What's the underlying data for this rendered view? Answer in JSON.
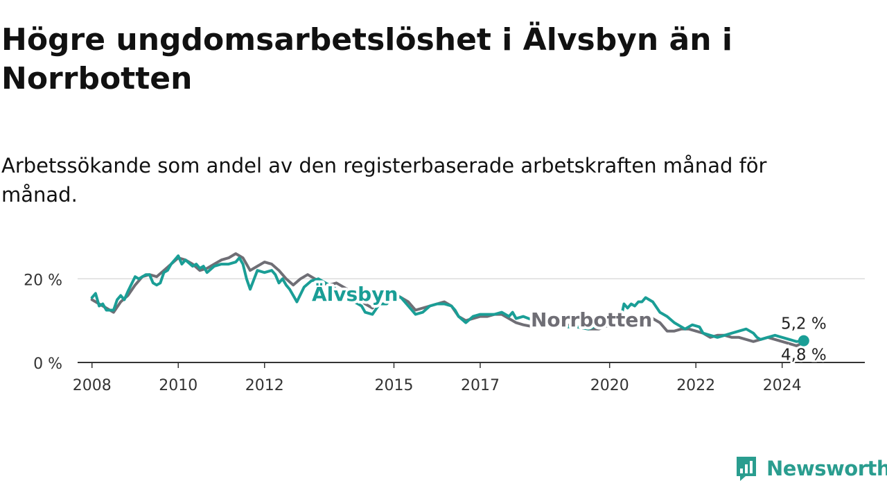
{
  "title": "Högre ungdomsarbetslöshet i Älvsbyn än i Norrbotten",
  "subtitle": "Arbetssökande som andel av den registerbaserade arbetskraften månad för månad.",
  "brand": {
    "name": "Newsworthy",
    "icon": "newsworthy-logo-icon",
    "color": "#2a9d8f"
  },
  "chart_data": {
    "type": "line",
    "title": "Högre ungdomsarbetslöshet i Älvsbyn än i Norrbotten",
    "subtitle": "Arbetssökande som andel av den registerbaserade arbetskraften månad för månad.",
    "xlabel": "",
    "ylabel": "",
    "x_ticks": [
      "2008",
      "2010",
      "2012",
      "2015",
      "2017",
      "2020",
      "2022",
      "2024"
    ],
    "y_ticks": [
      0,
      20
    ],
    "y_tick_labels": [
      "0 %",
      "20 %"
    ],
    "ylim": [
      0,
      27
    ],
    "xlim": [
      "2007-09",
      "2025-12"
    ],
    "grid": "horizontal",
    "legend": "inline labels",
    "series": [
      {
        "name": "Norrbotten",
        "color": "#6f6e75",
        "label": "Norrbotten",
        "end_label": "4,8 %",
        "points": [
          [
            "2008-01",
            15.0
          ],
          [
            "2008-03",
            14.0
          ],
          [
            "2008-05",
            13.0
          ],
          [
            "2008-07",
            12.0
          ],
          [
            "2008-09",
            14.5
          ],
          [
            "2008-11",
            16.0
          ],
          [
            "2009-01",
            18.5
          ],
          [
            "2009-03",
            20.5
          ],
          [
            "2009-05",
            21.0
          ],
          [
            "2009-07",
            20.5
          ],
          [
            "2009-09",
            22.0
          ],
          [
            "2009-11",
            23.5
          ],
          [
            "2010-01",
            25.0
          ],
          [
            "2010-03",
            24.5
          ],
          [
            "2010-05",
            23.5
          ],
          [
            "2010-07",
            22.0
          ],
          [
            "2010-09",
            22.5
          ],
          [
            "2010-11",
            23.5
          ],
          [
            "2011-01",
            24.5
          ],
          [
            "2011-03",
            25.0
          ],
          [
            "2011-05",
            26.0
          ],
          [
            "2011-07",
            25.0
          ],
          [
            "2011-09",
            22.0
          ],
          [
            "2011-11",
            23.0
          ],
          [
            "2012-01",
            24.0
          ],
          [
            "2012-03",
            23.5
          ],
          [
            "2012-05",
            22.0
          ],
          [
            "2012-07",
            20.0
          ],
          [
            "2012-09",
            18.5
          ],
          [
            "2012-11",
            20.0
          ],
          [
            "2013-01",
            21.0
          ],
          [
            "2013-03",
            20.0
          ],
          [
            "2013-05",
            19.0
          ],
          [
            "2013-07",
            18.5
          ],
          [
            "2013-09",
            19.0
          ],
          [
            "2013-11",
            18.0
          ],
          [
            "2014-01",
            17.0
          ],
          [
            "2014-03",
            15.5
          ],
          [
            "2014-05",
            14.0
          ],
          [
            "2014-07",
            13.0
          ],
          [
            "2014-09",
            15.0
          ],
          [
            "2014-11",
            16.0
          ],
          [
            "2015-01",
            16.5
          ],
          [
            "2015-03",
            15.5
          ],
          [
            "2015-05",
            14.5
          ],
          [
            "2015-07",
            12.5
          ],
          [
            "2015-09",
            13.0
          ],
          [
            "2015-11",
            13.5
          ],
          [
            "2016-01",
            14.0
          ],
          [
            "2016-03",
            14.5
          ],
          [
            "2016-05",
            13.5
          ],
          [
            "2016-07",
            11.0
          ],
          [
            "2016-09",
            10.0
          ],
          [
            "2016-11",
            10.5
          ],
          [
            "2017-01",
            11.0
          ],
          [
            "2017-03",
            11.0
          ],
          [
            "2017-05",
            11.5
          ],
          [
            "2017-07",
            11.5
          ],
          [
            "2017-09",
            10.5
          ],
          [
            "2017-11",
            9.5
          ],
          [
            "2018-01",
            9.0
          ],
          [
            "2018-04",
            8.5
          ],
          [
            "2018-07",
            9.0
          ],
          [
            "2018-10",
            8.5
          ],
          [
            "2019-01",
            9.0
          ],
          [
            "2019-04",
            8.5
          ],
          [
            "2019-07",
            8.0
          ],
          [
            "2019-10",
            8.0
          ],
          [
            "2020-01",
            9.0
          ],
          [
            "2020-03",
            10.0
          ],
          [
            "2020-05",
            10.5
          ],
          [
            "2020-07",
            10.5
          ],
          [
            "2020-09",
            10.0
          ],
          [
            "2020-11",
            11.0
          ],
          [
            "2021-01",
            10.5
          ],
          [
            "2021-03",
            9.5
          ],
          [
            "2021-05",
            7.5
          ],
          [
            "2021-07",
            7.5
          ],
          [
            "2021-09",
            8.0
          ],
          [
            "2021-11",
            8.0
          ],
          [
            "2022-01",
            7.5
          ],
          [
            "2022-03",
            7.0
          ],
          [
            "2022-05",
            6.0
          ],
          [
            "2022-07",
            6.5
          ],
          [
            "2022-09",
            6.5
          ],
          [
            "2022-11",
            6.0
          ],
          [
            "2023-01",
            6.0
          ],
          [
            "2023-03",
            5.5
          ],
          [
            "2023-05",
            5.0
          ],
          [
            "2023-07",
            5.5
          ],
          [
            "2023-09",
            6.0
          ],
          [
            "2023-11",
            5.5
          ],
          [
            "2024-01",
            5.0
          ],
          [
            "2024-03",
            4.5
          ],
          [
            "2024-05",
            4.0
          ],
          [
            "2024-07",
            4.8
          ]
        ]
      },
      {
        "name": "Älvsbyn",
        "color": "#1a9e96",
        "label": "Älvsbyn",
        "end_label": "5,2 %",
        "points": [
          [
            "2008-01",
            15.5
          ],
          [
            "2008-02",
            16.5
          ],
          [
            "2008-03",
            13.5
          ],
          [
            "2008-04",
            14.0
          ],
          [
            "2008-05",
            12.5
          ],
          [
            "2008-07",
            12.5
          ],
          [
            "2008-08",
            15.0
          ],
          [
            "2008-09",
            16.0
          ],
          [
            "2008-10",
            15.0
          ],
          [
            "2008-11",
            17.0
          ],
          [
            "2009-01",
            20.5
          ],
          [
            "2009-02",
            20.0
          ],
          [
            "2009-04",
            21.0
          ],
          [
            "2009-05",
            21.0
          ],
          [
            "2009-06",
            19.0
          ],
          [
            "2009-07",
            18.5
          ],
          [
            "2009-08",
            19.0
          ],
          [
            "2009-09",
            21.5
          ],
          [
            "2009-10",
            22.0
          ],
          [
            "2009-11",
            23.5
          ],
          [
            "2010-01",
            25.5
          ],
          [
            "2010-02",
            23.5
          ],
          [
            "2010-03",
            24.5
          ],
          [
            "2010-05",
            23.0
          ],
          [
            "2010-06",
            23.5
          ],
          [
            "2010-07",
            22.5
          ],
          [
            "2010-08",
            23.0
          ],
          [
            "2010-09",
            21.5
          ],
          [
            "2010-11",
            23.0
          ],
          [
            "2011-01",
            23.5
          ],
          [
            "2011-03",
            23.5
          ],
          [
            "2011-05",
            24.0
          ],
          [
            "2011-06",
            25.0
          ],
          [
            "2011-07",
            23.5
          ],
          [
            "2011-08",
            20.0
          ],
          [
            "2011-09",
            17.5
          ],
          [
            "2011-11",
            22.0
          ],
          [
            "2012-01",
            21.5
          ],
          [
            "2012-03",
            22.0
          ],
          [
            "2012-04",
            21.0
          ],
          [
            "2012-05",
            19.0
          ],
          [
            "2012-06",
            20.0
          ],
          [
            "2012-07",
            18.5
          ],
          [
            "2012-08",
            17.5
          ],
          [
            "2012-09",
            16.0
          ],
          [
            "2012-10",
            14.5
          ],
          [
            "2012-12",
            18.0
          ],
          [
            "2013-02",
            19.5
          ],
          [
            "2013-04",
            20.0
          ],
          [
            "2013-06",
            19.0
          ],
          [
            "2013-08",
            18.0
          ],
          [
            "2013-10",
            17.0
          ],
          [
            "2013-12",
            15.5
          ],
          [
            "2014-02",
            14.5
          ],
          [
            "2014-04",
            13.5
          ],
          [
            "2014-05",
            12.0
          ],
          [
            "2014-07",
            11.5
          ],
          [
            "2014-09",
            14.0
          ],
          [
            "2014-11",
            14.0
          ],
          [
            "2014-12",
            15.0
          ],
          [
            "2015-01",
            16.0
          ],
          [
            "2015-03",
            15.5
          ],
          [
            "2015-05",
            13.5
          ],
          [
            "2015-07",
            11.5
          ],
          [
            "2015-09",
            12.0
          ],
          [
            "2015-11",
            13.5
          ],
          [
            "2016-01",
            14.0
          ],
          [
            "2016-03",
            14.0
          ],
          [
            "2016-05",
            13.5
          ],
          [
            "2016-06",
            12.5
          ],
          [
            "2016-07",
            11.0
          ],
          [
            "2016-09",
            9.5
          ],
          [
            "2016-11",
            11.0
          ],
          [
            "2017-01",
            11.5
          ],
          [
            "2017-03",
            11.5
          ],
          [
            "2017-05",
            11.5
          ],
          [
            "2017-07",
            12.0
          ],
          [
            "2017-09",
            11.0
          ],
          [
            "2017-10",
            12.0
          ],
          [
            "2017-11",
            10.5
          ],
          [
            "2018-01",
            11.0
          ],
          [
            "2018-04",
            10.0
          ],
          [
            "2018-07",
            9.5
          ],
          [
            "2018-10",
            9.0
          ],
          [
            "2019-01",
            8.5
          ],
          [
            "2019-04",
            8.5
          ],
          [
            "2019-07",
            8.0
          ],
          [
            "2019-10",
            9.0
          ],
          [
            "2020-01",
            9.5
          ],
          [
            "2020-04",
            10.0
          ],
          [
            "2020-05",
            14.0
          ],
          [
            "2020-06",
            13.0
          ],
          [
            "2020-07",
            14.0
          ],
          [
            "2020-08",
            13.5
          ],
          [
            "2020-09",
            14.5
          ],
          [
            "2020-10",
            14.5
          ],
          [
            "2020-11",
            15.5
          ],
          [
            "2021-01",
            14.5
          ],
          [
            "2021-03",
            12.0
          ],
          [
            "2021-05",
            11.0
          ],
          [
            "2021-07",
            9.5
          ],
          [
            "2021-09",
            8.5
          ],
          [
            "2021-10",
            8.0
          ],
          [
            "2021-12",
            9.0
          ],
          [
            "2022-02",
            8.5
          ],
          [
            "2022-03",
            7.0
          ],
          [
            "2022-05",
            6.5
          ],
          [
            "2022-07",
            6.0
          ],
          [
            "2022-09",
            6.5
          ],
          [
            "2022-11",
            7.0
          ],
          [
            "2023-01",
            7.5
          ],
          [
            "2023-03",
            8.0
          ],
          [
            "2023-05",
            7.0
          ],
          [
            "2023-06",
            6.0
          ],
          [
            "2023-07",
            5.5
          ],
          [
            "2023-09",
            6.0
          ],
          [
            "2023-11",
            6.5
          ],
          [
            "2024-01",
            6.0
          ],
          [
            "2024-03",
            5.5
          ],
          [
            "2024-05",
            5.0
          ],
          [
            "2024-07",
            5.2
          ]
        ]
      }
    ]
  }
}
